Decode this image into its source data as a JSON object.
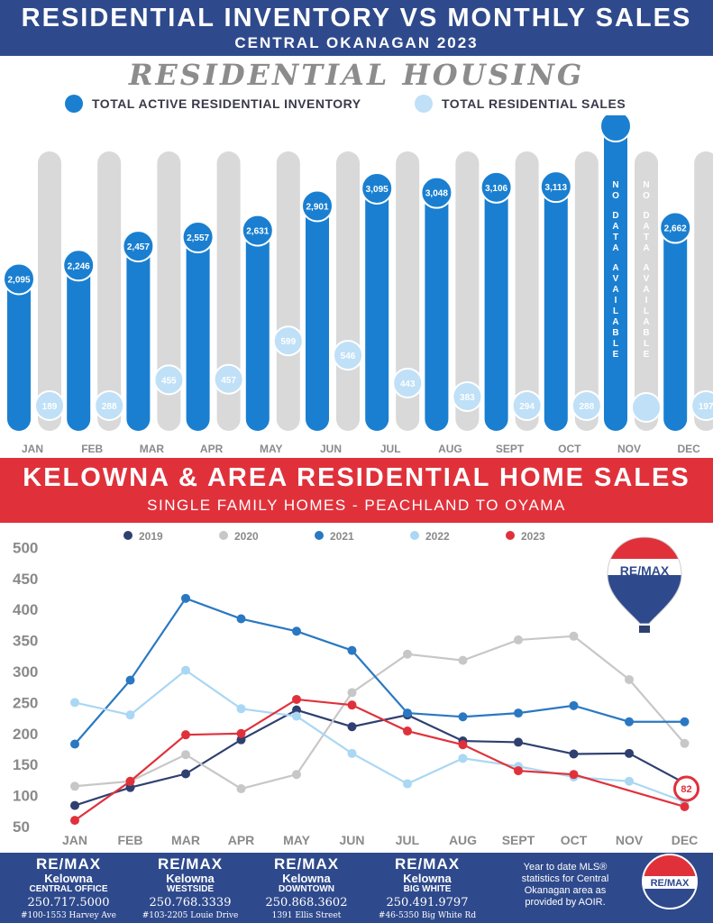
{
  "header": {
    "title": "RESIDENTIAL INVENTORY VS MONTHLY SALES",
    "subtitle": "CENTRAL OKANAGAN 2023"
  },
  "section1": {
    "title": "RESIDENTIAL HOUSING",
    "legend": [
      "TOTAL ACTIVE RESIDENTIAL INVENTORY",
      "TOTAL RESIDENTIAL SALES"
    ],
    "no_data_text": "NO DATA AVAILABLE"
  },
  "section2": {
    "title": "KELOWNA & AREA RESIDENTIAL HOME SALES",
    "subtitle": "SINGLE FAMILY HOMES - PEACHLAND TO OYAMA"
  },
  "colors": {
    "navy": "#2f4a8c",
    "red": "#e0313b",
    "inventory_blue": "#1a7fd0",
    "sales_light": "#bfe0f7",
    "bar_grey": "#d9d9d9"
  },
  "chart_data": [
    {
      "type": "bar",
      "title": "RESIDENTIAL HOUSING",
      "categories": [
        "JAN",
        "FEB",
        "MAR",
        "APR",
        "MAY",
        "JUN",
        "JUL",
        "AUG",
        "SEPT",
        "OCT",
        "NOV",
        "DEC"
      ],
      "series": [
        {
          "name": "TOTAL ACTIVE RESIDENTIAL INVENTORY",
          "color": "#1a7fd0",
          "values": [
            2095,
            2246,
            2457,
            2557,
            2631,
            2901,
            3095,
            3048,
            3106,
            3113,
            null,
            2662
          ],
          "labels": [
            "2,095",
            "2,246",
            "2,457",
            "2,557",
            "2,631",
            "2,901",
            "3,095",
            "3,048",
            "3,106",
            "3,113",
            "",
            "2,662"
          ]
        },
        {
          "name": "TOTAL RESIDENTIAL SALES",
          "color": "#bfe0f7",
          "values": [
            189,
            288,
            455,
            457,
            599,
            546,
            443,
            383,
            294,
            288,
            null,
            197
          ],
          "labels": [
            "189",
            "288",
            "455",
            "457",
            "599",
            "546",
            "443",
            "383",
            "294",
            "288",
            "",
            "197"
          ]
        }
      ]
    },
    {
      "type": "line",
      "title": "KELOWNA & AREA RESIDENTIAL HOME SALES",
      "categories": [
        "JAN",
        "FEB",
        "MAR",
        "APR",
        "MAY",
        "JUN",
        "JUL",
        "AUG",
        "SEPT",
        "OCT",
        "NOV",
        "DEC"
      ],
      "yticks": [
        50,
        100,
        150,
        200,
        250,
        300,
        350,
        400,
        450,
        500
      ],
      "ylim": [
        50,
        500
      ],
      "grid": false,
      "legend_position": "top",
      "annotation": "82",
      "series": [
        {
          "name": "2019",
          "color": "#2f3f6f",
          "values": [
            84,
            113,
            135,
            190,
            238,
            211,
            230,
            188,
            186,
            167,
            168,
            120
          ]
        },
        {
          "name": "2020",
          "color": "#c7c7c7",
          "values": [
            115,
            123,
            166,
            111,
            134,
            266,
            328,
            318,
            351,
            357,
            287,
            184
          ]
        },
        {
          "name": "2021",
          "color": "#2a78c2",
          "values": [
            183,
            286,
            418,
            385,
            365,
            334,
            233,
            227,
            233,
            245,
            219,
            219
          ]
        },
        {
          "name": "2022",
          "color": "#aad7f3",
          "values": [
            250,
            230,
            302,
            240,
            228,
            168,
            119,
            160,
            147,
            130,
            123,
            90
          ]
        },
        {
          "name": "2023",
          "color": "#e0313b",
          "values": [
            60,
            123,
            198,
            200,
            255,
            246,
            204,
            182,
            140,
            134,
            null,
            82
          ]
        }
      ]
    }
  ],
  "footer": {
    "offices": [
      {
        "brand": "RE/MAX",
        "city": "Kelowna",
        "area": "CENTRAL OFFICE",
        "phone": "250.717.5000",
        "address": "#100-1553 Harvey Ave"
      },
      {
        "brand": "RE/MAX",
        "city": "Kelowna",
        "area": "WESTSIDE",
        "phone": "250.768.3339",
        "address": "#103-2205 Louie Drive"
      },
      {
        "brand": "RE/MAX",
        "city": "Kelowna",
        "area": "DOWNTOWN",
        "phone": "250.868.3602",
        "address": "1391 Ellis Street"
      },
      {
        "brand": "RE/MAX",
        "city": "Kelowna",
        "area": "BIG WHITE",
        "phone": "250.491.9797",
        "address": "#46-5350 Big White Rd"
      }
    ],
    "note": "Year to date MLS® statistics for Central Okanagan area as provided by AOIR.",
    "logo_text": "RE/MAX"
  },
  "balloon_logo_text": "RE/MAX"
}
